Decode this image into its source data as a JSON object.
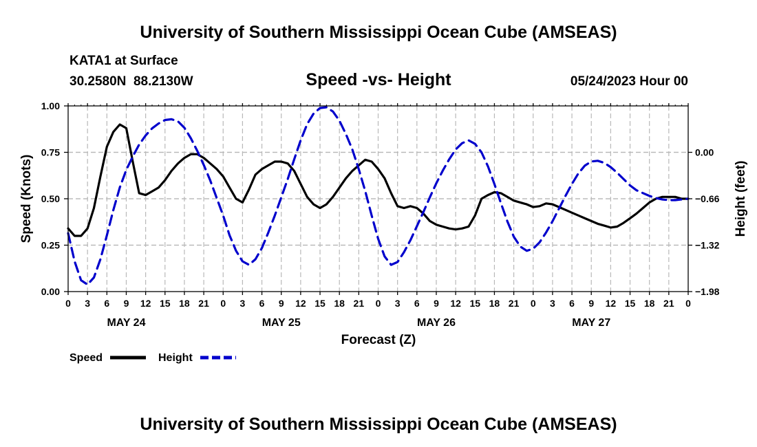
{
  "header": {
    "title": "University of Southern Mississippi Ocean Cube (AMSEAS)",
    "footer_title": "University of Southern Mississippi Ocean Cube (AMSEAS)",
    "station": "KATA1 at Surface",
    "coords": "30.2580N  88.2130W",
    "plot_title": "Speed -vs- Height",
    "date": "05/24/2023 Hour 00"
  },
  "chart_data": {
    "type": "line",
    "title": "Speed -vs- Height",
    "xlabel": "Forecast (Z)",
    "ylabel": "Speed (Knots)",
    "y2label": "Height (feet)",
    "xlim": [
      0,
      96
    ],
    "ylim": [
      0,
      1
    ],
    "y2lim": [
      -1.98,
      0.66
    ],
    "x_tick_labels": [
      "0",
      "3",
      "6",
      "9",
      "12",
      "15",
      "18",
      "21",
      "0",
      "3",
      "6",
      "9",
      "12",
      "15",
      "18",
      "21",
      "0",
      "3",
      "6",
      "9",
      "12",
      "15",
      "18",
      "21",
      "0",
      "3",
      "6",
      "9",
      "12",
      "15",
      "18",
      "21",
      "0"
    ],
    "day_labels": [
      {
        "label": "MAY 24",
        "hour": 9
      },
      {
        "label": "MAY 25",
        "hour": 33
      },
      {
        "label": "MAY 26",
        "hour": 57
      },
      {
        "label": "MAY 27",
        "hour": 81
      }
    ],
    "y_ticks": [
      "0.00",
      "0.25",
      "0.50",
      "0.75",
      "1.00"
    ],
    "y2_ticks": [
      "-1.98",
      "-1.32",
      "-0.66",
      "0.00"
    ],
    "series": [
      {
        "name": "Speed",
        "color": "#000000",
        "axis": "left",
        "x": [
          0,
          1,
          2,
          3,
          4,
          5,
          6,
          7,
          8,
          9,
          10,
          11,
          12,
          13,
          14,
          15,
          16,
          17,
          18,
          19,
          20,
          21,
          22,
          23,
          24,
          25,
          26,
          27,
          28,
          29,
          30,
          31,
          32,
          33,
          34,
          35,
          36,
          37,
          38,
          39,
          40,
          41,
          42,
          43,
          44,
          45,
          46,
          47,
          48,
          49,
          50,
          51,
          52,
          53,
          54,
          55,
          56,
          57,
          58,
          59,
          60,
          61,
          62,
          63,
          64,
          65,
          66,
          67,
          68,
          69,
          70,
          71,
          72,
          73,
          74,
          75,
          76,
          77,
          78,
          79,
          80,
          81,
          82,
          83,
          84,
          85,
          86,
          87,
          88,
          89,
          90,
          91,
          92,
          93,
          94,
          95,
          96
        ],
        "values": [
          0.34,
          0.3,
          0.3,
          0.34,
          0.45,
          0.62,
          0.78,
          0.86,
          0.9,
          0.88,
          0.7,
          0.53,
          0.52,
          0.54,
          0.56,
          0.6,
          0.65,
          0.69,
          0.72,
          0.74,
          0.74,
          0.72,
          0.69,
          0.66,
          0.62,
          0.56,
          0.5,
          0.48,
          0.55,
          0.63,
          0.66,
          0.68,
          0.7,
          0.7,
          0.69,
          0.65,
          0.58,
          0.51,
          0.47,
          0.45,
          0.47,
          0.51,
          0.56,
          0.61,
          0.65,
          0.68,
          0.71,
          0.7,
          0.66,
          0.61,
          0.53,
          0.46,
          0.45,
          0.46,
          0.45,
          0.42,
          0.38,
          0.36,
          0.35,
          0.34,
          0.335,
          0.34,
          0.35,
          0.41,
          0.5,
          0.52,
          0.535,
          0.53,
          0.51,
          0.49,
          0.48,
          0.47,
          0.455,
          0.46,
          0.475,
          0.47,
          0.455,
          0.44,
          0.425,
          0.41,
          0.395,
          0.38,
          0.365,
          0.355,
          0.345,
          0.35,
          0.37,
          0.395,
          0.42,
          0.45,
          0.48,
          0.5,
          0.51,
          0.51,
          0.51,
          0.5,
          0.5
        ]
      },
      {
        "name": "Height",
        "color": "#0000cc",
        "axis": "right",
        "x": [
          0,
          1,
          2,
          3,
          4,
          5,
          6,
          7,
          8,
          9,
          10,
          11,
          12,
          13,
          14,
          15,
          16,
          17,
          18,
          19,
          20,
          21,
          22,
          23,
          24,
          25,
          26,
          27,
          28,
          29,
          30,
          31,
          32,
          33,
          34,
          35,
          36,
          37,
          38,
          39,
          40,
          41,
          42,
          43,
          44,
          45,
          46,
          47,
          48,
          49,
          50,
          51,
          52,
          53,
          54,
          55,
          56,
          57,
          58,
          59,
          60,
          61,
          62,
          63,
          64,
          65,
          66,
          67,
          68,
          69,
          70,
          71,
          72,
          73,
          74,
          75,
          76,
          77,
          78,
          79,
          80,
          81,
          82,
          83,
          84,
          85,
          86,
          87,
          88,
          89,
          90,
          91,
          92,
          93,
          94,
          95,
          96
        ],
        "values": [
          -1.15,
          -1.55,
          -1.82,
          -1.88,
          -1.78,
          -1.52,
          -1.18,
          -0.82,
          -0.5,
          -0.25,
          -0.06,
          0.11,
          0.24,
          0.34,
          0.41,
          0.46,
          0.47,
          0.44,
          0.35,
          0.2,
          0.02,
          -0.18,
          -0.4,
          -0.65,
          -0.9,
          -1.18,
          -1.4,
          -1.55,
          -1.6,
          -1.52,
          -1.36,
          -1.14,
          -0.9,
          -0.64,
          -0.38,
          -0.1,
          0.17,
          0.4,
          0.55,
          0.63,
          0.64,
          0.58,
          0.45,
          0.26,
          0.04,
          -0.24,
          -0.55,
          -0.9,
          -1.23,
          -1.48,
          -1.6,
          -1.56,
          -1.42,
          -1.25,
          -1.05,
          -0.85,
          -0.64,
          -0.44,
          -0.26,
          -0.1,
          0.04,
          0.13,
          0.17,
          0.12,
          0.0,
          -0.2,
          -0.45,
          -0.72,
          -0.98,
          -1.2,
          -1.34,
          -1.4,
          -1.37,
          -1.28,
          -1.14,
          -0.98,
          -0.8,
          -0.62,
          -0.45,
          -0.3,
          -0.19,
          -0.13,
          -0.12,
          -0.15,
          -0.21,
          -0.29,
          -0.38,
          -0.47,
          -0.54,
          -0.58,
          -0.62,
          -0.65,
          -0.67,
          -0.68,
          -0.68,
          -0.67,
          -0.66
        ]
      }
    ]
  },
  "legend": {
    "speed_label": "Speed",
    "height_label": "Height",
    "speed_color": "#000000",
    "height_color": "#0000cc"
  }
}
